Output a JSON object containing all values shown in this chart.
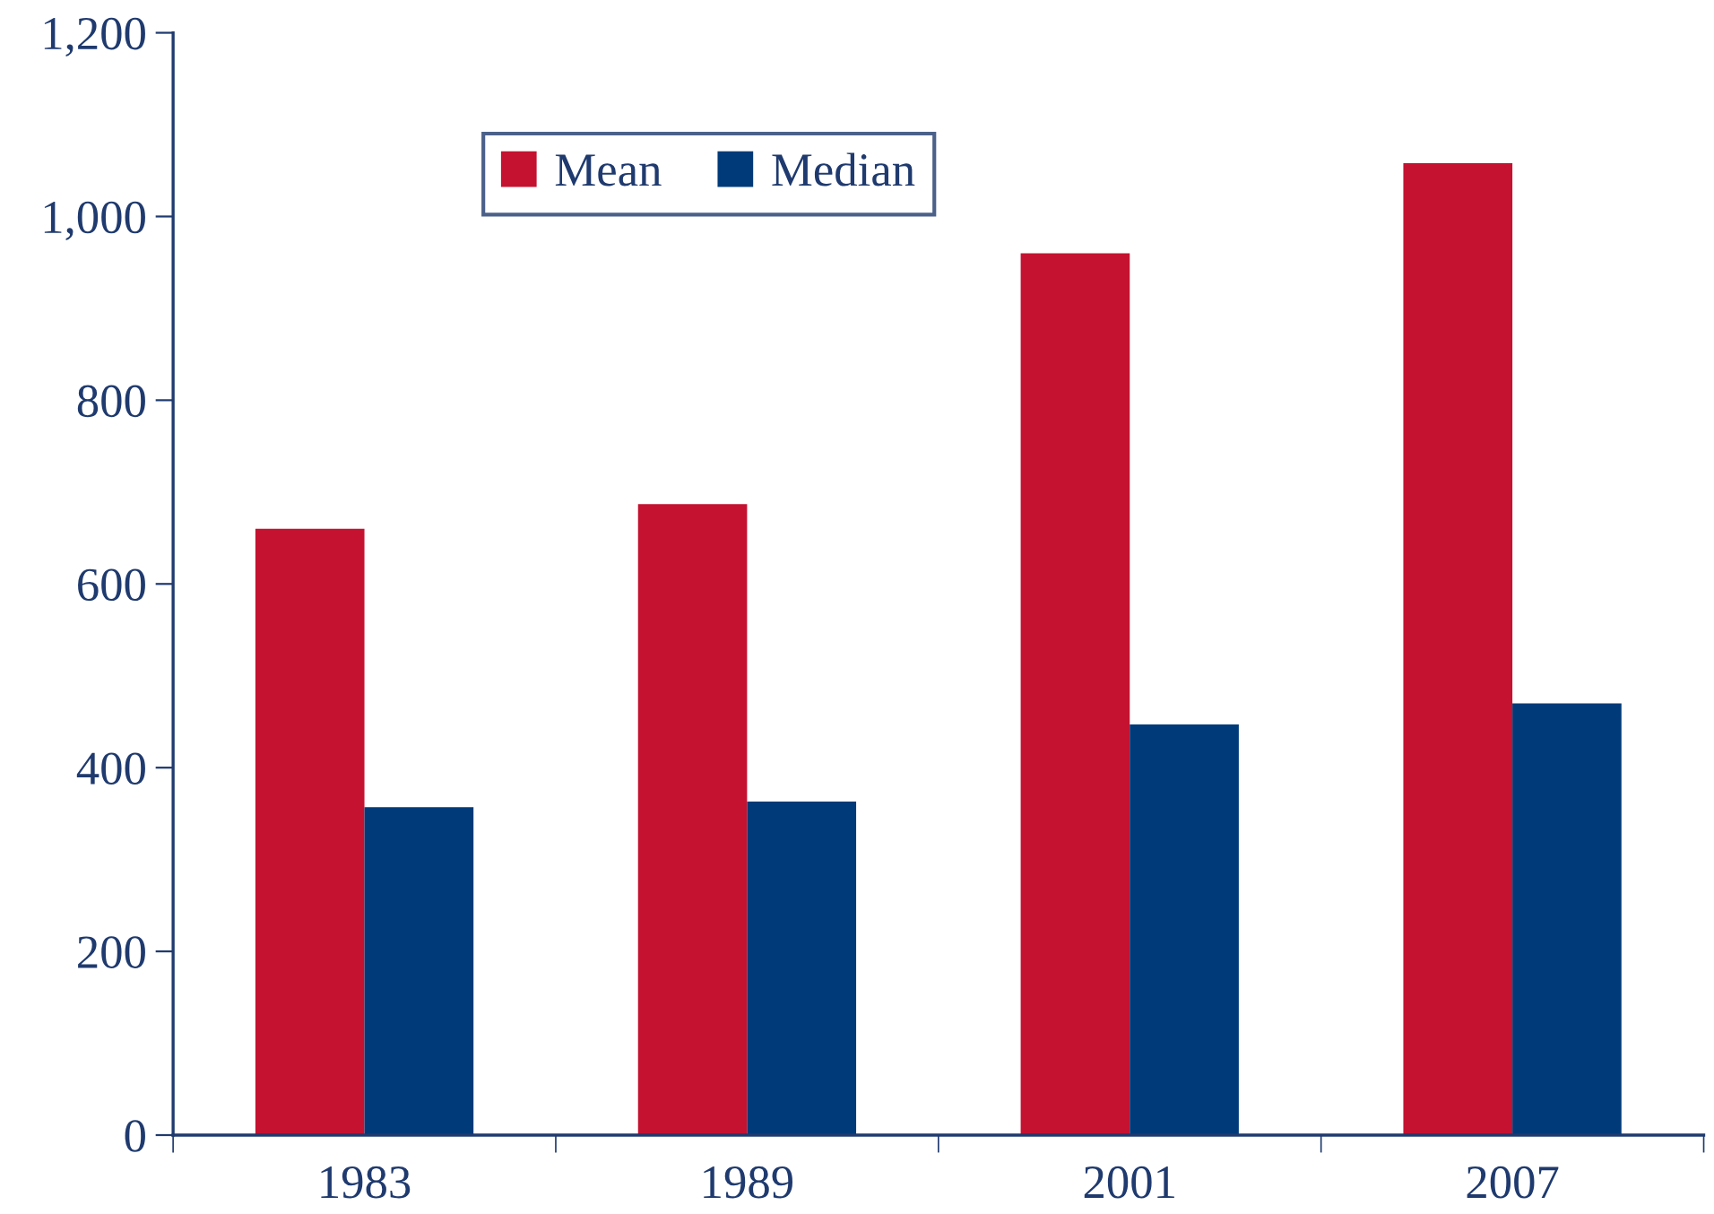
{
  "chart_data": {
    "type": "bar",
    "categories": [
      "1983",
      "1989",
      "2001",
      "2007"
    ],
    "series": [
      {
        "name": "Mean",
        "color": "#c41230",
        "values": [
          660,
          687,
          960,
          1058
        ]
      },
      {
        "name": "Median",
        "color": "#003a78",
        "values": [
          357,
          363,
          447,
          470
        ]
      }
    ],
    "ylim": [
      0,
      1200
    ],
    "yticks": [
      0,
      {
        "value": 200,
        "label": "200"
      },
      {
        "value": 400,
        "label": "400"
      },
      {
        "value": 600,
        "label": "600"
      },
      {
        "value": 800,
        "label": "800"
      },
      {
        "value": 1000,
        "label": "1,000"
      },
      {
        "value": 1200,
        "label": "1,200"
      }
    ],
    "grid": false,
    "legend": "top"
  }
}
